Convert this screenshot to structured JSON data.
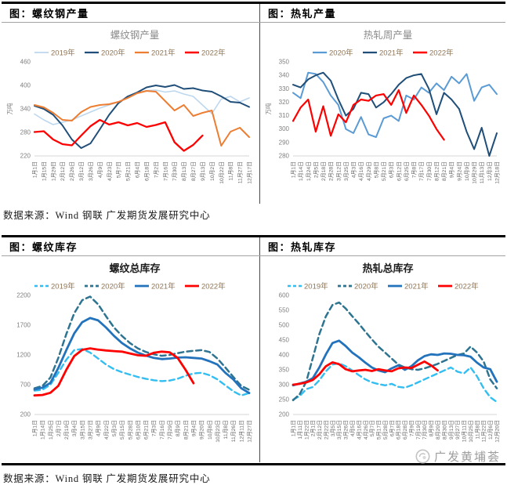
{
  "page": {
    "source_note_top": "数据来源：Wind 钢联 广发期货发展研究中心",
    "source_note_bottom": "数据来源：Wind 钢联 广发期货发展研究中心",
    "watermark_text": "广发黄埔荟"
  },
  "panels": [
    {
      "header": "图：螺纹钢产量"
    },
    {
      "header": "图：热轧产量"
    },
    {
      "header": "图：螺纹库存"
    },
    {
      "header": "图：热轧库存"
    }
  ],
  "colors": {
    "legend_text": "#8f7454",
    "axis_text": "#7f7f7f",
    "tick_text": "#666666",
    "axis_line": "#d4d4d4",
    "title_gray": "#8a8a8a",
    "title_black": "#1a1a1a"
  },
  "chart_data": [
    {
      "type": "line",
      "title": "螺纹钢产量",
      "title_color": "#8a8a8a",
      "title_bold": false,
      "ylabel": "万吨",
      "ylim": [
        220,
        460
      ],
      "yticks": [
        220,
        280,
        340,
        400,
        460
      ],
      "legend_position": "top",
      "grid": false,
      "categories": [
        "1月1日",
        "1月15日",
        "1月29日",
        "2月12日",
        "2月26日",
        "3月12日",
        "3月26日",
        "4月9日",
        "4月23日",
        "5月7日",
        "5月21日",
        "6月4日",
        "6月18日",
        "7月2日",
        "7月16日",
        "7月30日",
        "8月13日",
        "8月27日",
        "9月13日",
        "10月2日",
        "10月22日",
        "11月8日",
        "11月27日",
        "12月17日"
      ],
      "series": [
        {
          "name": "2019年",
          "color": "#BDD7EE",
          "dashed": false,
          "width": 1.6,
          "values": [
            327,
            312,
            300,
            306,
            312,
            322,
            332,
            342,
            350,
            358,
            370,
            380,
            387,
            388,
            383,
            386,
            378,
            372,
            350,
            328,
            365,
            372,
            358,
            368
          ]
        },
        {
          "name": "2020年",
          "color": "#1F4E79",
          "dashed": false,
          "width": 2,
          "values": [
            348,
            340,
            325,
            298,
            262,
            240,
            252,
            288,
            325,
            355,
            372,
            382,
            395,
            400,
            396,
            401,
            391,
            393,
            387,
            384,
            372,
            358,
            356,
            345
          ]
        },
        {
          "name": "2021年",
          "color": "#ED7D31",
          "dashed": false,
          "width": 2,
          "values": [
            350,
            344,
            330,
            312,
            310,
            332,
            345,
            350,
            352,
            358,
            368,
            380,
            386,
            384,
            360,
            336,
            350,
            322,
            330,
            336,
            246,
            282,
            292,
            268
          ]
        },
        {
          "name": "2022年",
          "color": "#FF0000",
          "dashed": false,
          "width": 2.3,
          "values": [
            281,
            283,
            262,
            250,
            247,
            272,
            296,
            312,
            300,
            306,
            298,
            304,
            294,
            299,
            306,
            255,
            233,
            248,
            272,
            null,
            null,
            null,
            null,
            null
          ]
        }
      ]
    },
    {
      "type": "line",
      "title": "热轧周产量",
      "title_color": "#8a8a8a",
      "title_bold": false,
      "ylabel": "万吨",
      "ylim": [
        280,
        350
      ],
      "yticks": [
        280,
        290,
        300,
        310,
        320,
        330,
        340,
        350
      ],
      "legend_position": "top",
      "grid": false,
      "categories": [
        "1月1日",
        "1月14日",
        "1月24日",
        "2月5日",
        "2月18日",
        "2月28日",
        "3月12日",
        "3月25日",
        "4月3日",
        "4月16日",
        "4月29日",
        "5月8日",
        "5月21日",
        "6月3日",
        "6月12日",
        "6月25日",
        "7月8日",
        "7月17日",
        "7月30日",
        "8月12日",
        "8月21日",
        "9月4日",
        "9月24日",
        "10月9日",
        "10月29日",
        "11月13日",
        "12月3日",
        "12月18日"
      ],
      "series": [
        {
          "name": "2020年",
          "color": "#5B9BD5",
          "dashed": false,
          "width": 2,
          "values": [
            327,
            323,
            342,
            341,
            335,
            325,
            318,
            300,
            297,
            309,
            296,
            294,
            308,
            310,
            306,
            325,
            322,
            331,
            327,
            334,
            329,
            339,
            334,
            341,
            321,
            331,
            333,
            326
          ]
        },
        {
          "name": "2021年",
          "color": "#1F4E79",
          "dashed": false,
          "width": 2,
          "values": [
            333,
            331,
            337,
            340,
            342,
            336,
            322,
            310,
            315,
            327,
            326,
            316,
            320,
            326,
            333,
            338,
            340,
            341,
            330,
            311,
            327,
            322,
            315,
            298,
            285,
            301,
            280,
            297
          ]
        },
        {
          "name": "2022年",
          "color": "#FF0000",
          "dashed": false,
          "width": 2.2,
          "values": [
            306,
            316,
            322,
            298,
            317,
            295,
            311,
            305,
            318,
            322,
            321,
            325,
            326,
            318,
            329,
            312,
            325,
            318,
            310,
            300,
            292,
            null,
            null,
            null,
            null,
            null,
            null,
            null
          ]
        }
      ]
    },
    {
      "type": "line",
      "title": "螺纹总库存",
      "title_color": "#1a1a1a",
      "title_bold": true,
      "ylabel": "",
      "ylim": [
        200,
        2200
      ],
      "yticks": [
        200,
        700,
        1200,
        1700,
        2200
      ],
      "legend_position": "top",
      "grid": false,
      "categories": [
        "1月1日",
        "1月14日",
        "1月25日",
        "2月7日",
        "2月19日",
        "3月4日",
        "3月15日",
        "3月27日",
        "4月9日",
        "4月22日",
        "5月3日",
        "5月15日",
        "5月28日",
        "6月10日",
        "6月21日",
        "7月3日",
        "7月16日",
        "7月29日",
        "8月9日",
        "8月21日",
        "9月4日",
        "9月20日",
        "10月8日",
        "10月23日",
        "11月8日",
        "11月26日",
        "12月11日",
        "12月27日"
      ],
      "series": [
        {
          "name": "2019年",
          "color": "#33BEF2",
          "dashed": true,
          "width": 2.4,
          "values": [
            600,
            615,
            700,
            900,
            1120,
            1280,
            1300,
            1240,
            1140,
            1040,
            960,
            910,
            870,
            830,
            800,
            775,
            760,
            770,
            800,
            850,
            890,
            900,
            860,
            790,
            690,
            590,
            520,
            560
          ]
        },
        {
          "name": "2020年",
          "color": "#2E7490",
          "dashed": true,
          "width": 2.5,
          "values": [
            640,
            680,
            820,
            1150,
            1550,
            1900,
            2120,
            2180,
            2050,
            1850,
            1660,
            1520,
            1400,
            1310,
            1250,
            1210,
            1185,
            1200,
            1230,
            1255,
            1270,
            1280,
            1250,
            1140,
            990,
            830,
            680,
            615
          ]
        },
        {
          "name": "2021年",
          "color": "#2272BC",
          "dashed": false,
          "width": 2.8,
          "values": [
            620,
            650,
            730,
            980,
            1280,
            1560,
            1750,
            1820,
            1780,
            1660,
            1520,
            1400,
            1310,
            1240,
            1190,
            1150,
            1130,
            1140,
            1155,
            1160,
            1150,
            1140,
            1095,
            1040,
            900,
            790,
            640,
            560
          ]
        },
        {
          "name": "2022年",
          "color": "#FF0000",
          "dashed": false,
          "width": 2.8,
          "values": [
            520,
            528,
            565,
            680,
            950,
            1180,
            1285,
            1310,
            1290,
            1275,
            1265,
            1255,
            1225,
            1195,
            1185,
            1235,
            1255,
            1245,
            1150,
            950,
            725,
            null,
            null,
            null,
            null,
            null,
            null,
            null
          ]
        }
      ]
    },
    {
      "type": "line",
      "title": "热轧总库存",
      "title_color": "#1a1a1a",
      "title_bold": true,
      "ylabel": "",
      "ylim": [
        200,
        600
      ],
      "yticks": [
        200,
        250,
        300,
        350,
        400,
        450,
        500,
        550,
        600
      ],
      "legend_position": "top",
      "grid": false,
      "categories": [
        "1月1日",
        "1月11日",
        "1月22日",
        "2月1日",
        "2月12日",
        "2月22日",
        "3月5日",
        "3月15日",
        "3月26日",
        "4月5日",
        "4月16日",
        "4月26日",
        "5月7日",
        "5月17日",
        "5月28日",
        "6月7日",
        "6月18日",
        "6月28日",
        "7月9日",
        "7月19日",
        "7月30日",
        "8月9日",
        "8月20日",
        "8月30日",
        "9月13日",
        "9月27日",
        "10月11日",
        "10月25日",
        "11月8日",
        "11月22日",
        "12月6日",
        "12月20日"
      ],
      "series": [
        {
          "name": "2019年",
          "color": "#33BEF2",
          "dashed": true,
          "width": 2.4,
          "values": [
            250,
            262,
            285,
            292,
            315,
            345,
            368,
            372,
            362,
            348,
            332,
            318,
            308,
            302,
            298,
            303,
            293,
            290,
            298,
            308,
            318,
            328,
            338,
            348,
            358,
            344,
            338,
            358,
            328,
            288,
            258,
            242
          ]
        },
        {
          "name": "2020年",
          "color": "#2E7490",
          "dashed": true,
          "width": 2.5,
          "values": [
            248,
            268,
            310,
            390,
            470,
            530,
            568,
            576,
            556,
            530,
            505,
            478,
            452,
            428,
            408,
            388,
            368,
            358,
            352,
            350,
            355,
            362,
            370,
            380,
            390,
            400,
            405,
            428,
            408,
            378,
            318,
            288
          ]
        },
        {
          "name": "2021年",
          "color": "#2272BC",
          "dashed": false,
          "width": 2.8,
          "values": [
            298,
            304,
            310,
            322,
            358,
            402,
            440,
            448,
            430,
            408,
            392,
            374,
            358,
            348,
            342,
            355,
            365,
            350,
            362,
            382,
            396,
            402,
            400,
            405,
            404,
            400,
            399,
            394,
            374,
            358,
            352,
            310
          ]
        },
        {
          "name": "2022年",
          "color": "#FF0000",
          "dashed": false,
          "width": 2.8,
          "values": [
            300,
            303,
            308,
            316,
            335,
            362,
            375,
            369,
            352,
            345,
            348,
            350,
            346,
            352,
            348,
            345,
            355,
            358,
            356,
            367,
            378,
            365,
            348,
            null,
            null,
            null,
            null,
            null,
            null,
            null,
            null,
            null
          ]
        }
      ]
    }
  ]
}
